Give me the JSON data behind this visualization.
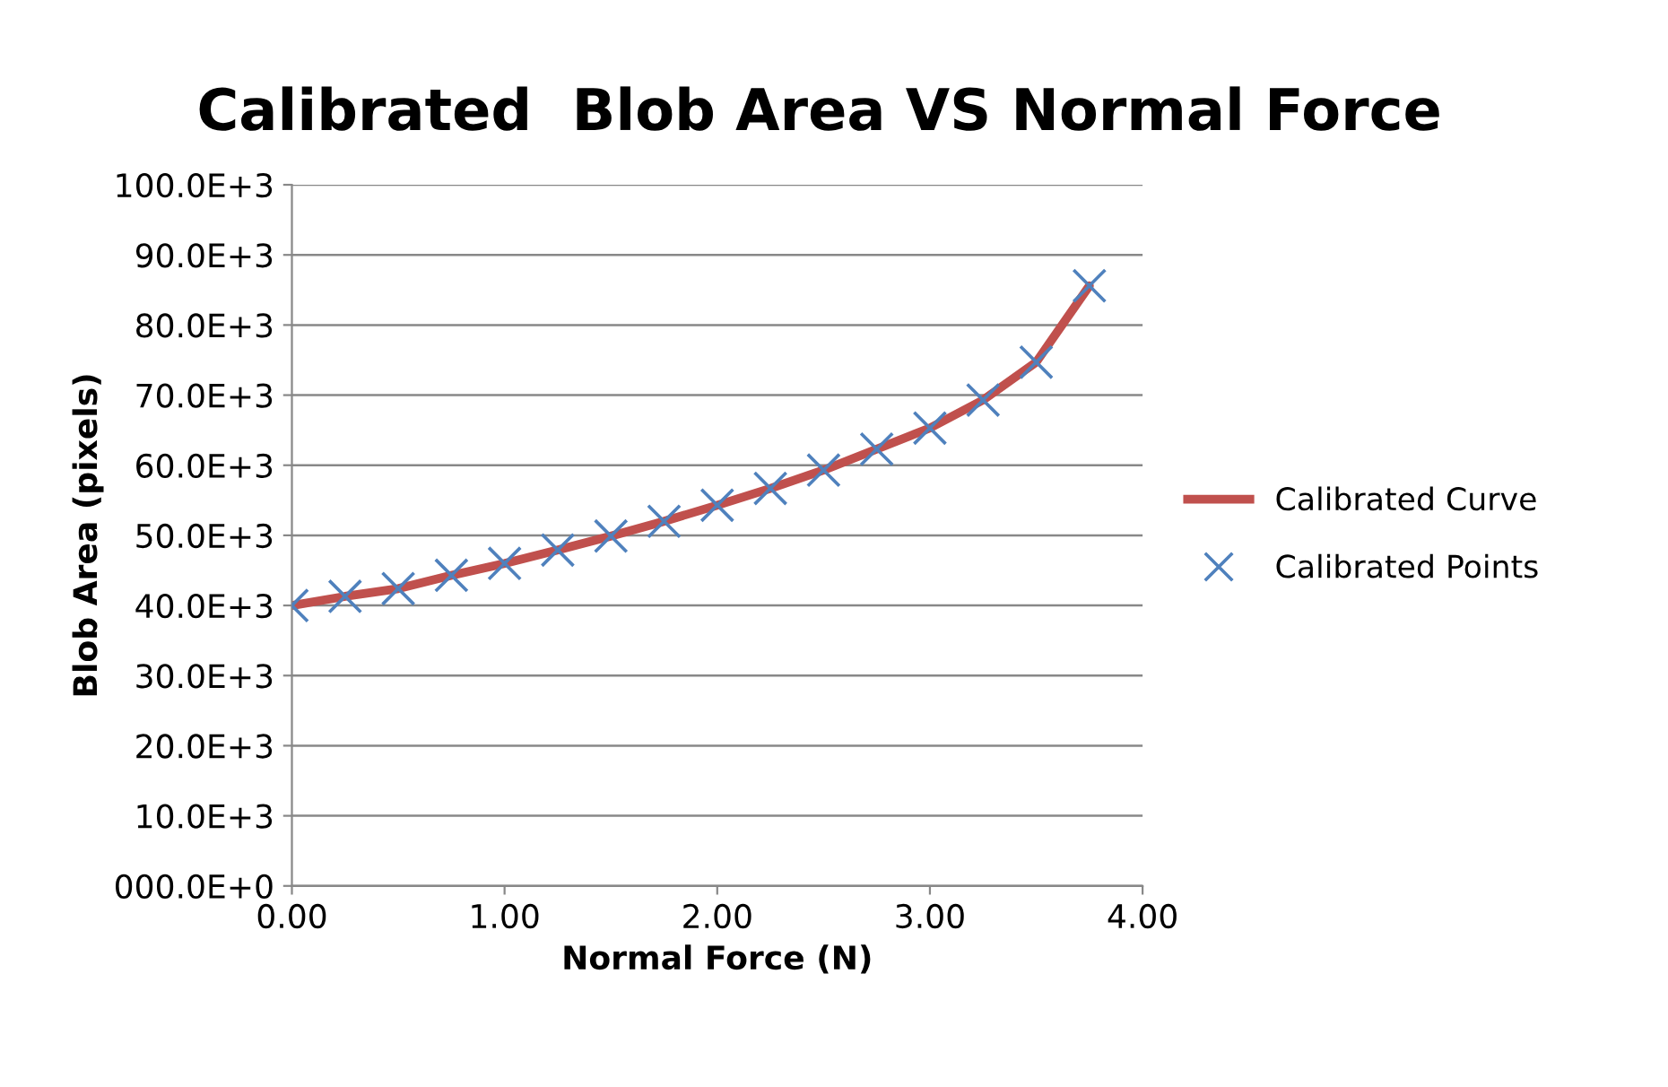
{
  "chart_data": {
    "type": "line",
    "title": "Calibrated  Blob Area VS Normal Force",
    "xlabel": "Normal Force (N)",
    "ylabel": "Blob Area (pixels)",
    "xlim": [
      0,
      4
    ],
    "xticks": [
      {
        "value": 0,
        "label": "0.00"
      },
      {
        "value": 1,
        "label": "1.00"
      },
      {
        "value": 2,
        "label": "2.00"
      },
      {
        "value": 3,
        "label": "3.00"
      },
      {
        "value": 4,
        "label": "4.00"
      }
    ],
    "ylim": [
      0,
      100000
    ],
    "yticks": [
      {
        "value": 0,
        "label": "000.0E+0"
      },
      {
        "value": 10000,
        "label": "10.0E+3"
      },
      {
        "value": 20000,
        "label": "20.0E+3"
      },
      {
        "value": 30000,
        "label": "30.0E+3"
      },
      {
        "value": 40000,
        "label": "40.0E+3"
      },
      {
        "value": 50000,
        "label": "50.0E+3"
      },
      {
        "value": 60000,
        "label": "60.0E+3"
      },
      {
        "value": 70000,
        "label": "70.0E+3"
      },
      {
        "value": 80000,
        "label": "80.0E+3"
      },
      {
        "value": 90000,
        "label": "90.0E+3"
      },
      {
        "value": 100000,
        "label": "100.0E+3"
      }
    ],
    "grid": "y",
    "legend": "right",
    "series": [
      {
        "name": "Calibrated Curve",
        "color": "#c0504d",
        "marker": "none",
        "line_style": "solid",
        "x": [
          0,
          0.25,
          0.5,
          0.75,
          1,
          1.25,
          1.5,
          1.75,
          2,
          2.25,
          2.5,
          2.75,
          3,
          3.25,
          3.5,
          3.75
        ],
        "values": [
          40000,
          41300,
          42400,
          44300,
          46000,
          47900,
          49900,
          52000,
          54300,
          56700,
          59300,
          62300,
          65300,
          69300,
          74700,
          85600
        ]
      },
      {
        "name": "Calibrated Points",
        "type": "scatter",
        "color": "#4f81bd",
        "marker": "cross",
        "x": [
          0,
          0.25,
          0.5,
          0.75,
          1,
          1.25,
          1.5,
          1.75,
          2,
          2.25,
          2.5,
          2.75,
          3,
          3.25,
          3.5,
          3.75
        ],
        "values": [
          40000,
          41300,
          42400,
          44300,
          46000,
          47900,
          49900,
          52000,
          54300,
          56700,
          59300,
          62300,
          65300,
          69300,
          74700,
          85600
        ]
      }
    ]
  }
}
